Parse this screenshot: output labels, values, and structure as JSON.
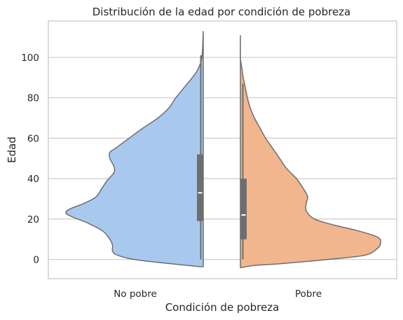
{
  "chart_data": {
    "type": "violin",
    "title": "Distribución de la edad por condición de pobreza",
    "xlabel": "Condición de pobreza",
    "ylabel": "Edad",
    "categories": [
      "No pobre",
      "Pobre"
    ],
    "ylim": [
      -9.5,
      118
    ],
    "yticks": [
      0,
      20,
      40,
      60,
      80,
      100
    ],
    "grid": "y",
    "colors": {
      "No pobre": "#a9c8ee",
      "Pobre": "#f2b68e",
      "box": "#6e6e6e"
    },
    "split_violins": [
      {
        "category": "No pobre",
        "side": "left",
        "min": -3.5,
        "max": 113,
        "box": {
          "whisker_low": 0,
          "q1": 19,
          "median": 33,
          "q3": 52,
          "whisker_high": 101
        },
        "density_profile": [
          [
            -3.5,
            0.03
          ],
          [
            -2,
            0.25
          ],
          [
            0,
            0.5
          ],
          [
            2,
            0.62
          ],
          [
            4,
            0.66
          ],
          [
            7,
            0.66
          ],
          [
            10,
            0.68
          ],
          [
            14,
            0.73
          ],
          [
            18,
            0.84
          ],
          [
            21,
            0.95
          ],
          [
            23,
            1.0
          ],
          [
            25,
            0.97
          ],
          [
            28,
            0.86
          ],
          [
            31,
            0.78
          ],
          [
            35,
            0.74
          ],
          [
            39,
            0.7
          ],
          [
            43,
            0.65
          ],
          [
            46,
            0.65
          ],
          [
            50,
            0.68
          ],
          [
            53,
            0.68
          ],
          [
            55,
            0.64
          ],
          [
            60,
            0.54
          ],
          [
            65,
            0.44
          ],
          [
            70,
            0.33
          ],
          [
            75,
            0.25
          ],
          [
            80,
            0.2
          ],
          [
            85,
            0.14
          ],
          [
            90,
            0.08
          ],
          [
            94,
            0.04
          ],
          [
            100,
            0.01
          ],
          [
            113,
            0.0
          ]
        ]
      },
      {
        "category": "Pobre",
        "side": "right",
        "min": -4,
        "max": 111,
        "box": {
          "whisker_low": 0,
          "q1": 10,
          "median": 22,
          "q3": 40,
          "whisker_high": 87
        },
        "density_profile": [
          [
            -4,
            0.01
          ],
          [
            -3,
            0.09
          ],
          [
            -2,
            0.3
          ],
          [
            0,
            0.62
          ],
          [
            2,
            0.88
          ],
          [
            5,
            0.97
          ],
          [
            8,
            1.0
          ],
          [
            11,
            0.98
          ],
          [
            14,
            0.85
          ],
          [
            17,
            0.67
          ],
          [
            20,
            0.53
          ],
          [
            24,
            0.47
          ],
          [
            28,
            0.47
          ],
          [
            31,
            0.48
          ],
          [
            35,
            0.45
          ],
          [
            40,
            0.4
          ],
          [
            45,
            0.33
          ],
          [
            50,
            0.28
          ],
          [
            55,
            0.23
          ],
          [
            60,
            0.18
          ],
          [
            65,
            0.14
          ],
          [
            70,
            0.1
          ],
          [
            75,
            0.07
          ],
          [
            80,
            0.05
          ],
          [
            85,
            0.035
          ],
          [
            90,
            0.02
          ],
          [
            95,
            0.01
          ],
          [
            100,
            0.0
          ],
          [
            111,
            0.0
          ]
        ]
      }
    ]
  }
}
